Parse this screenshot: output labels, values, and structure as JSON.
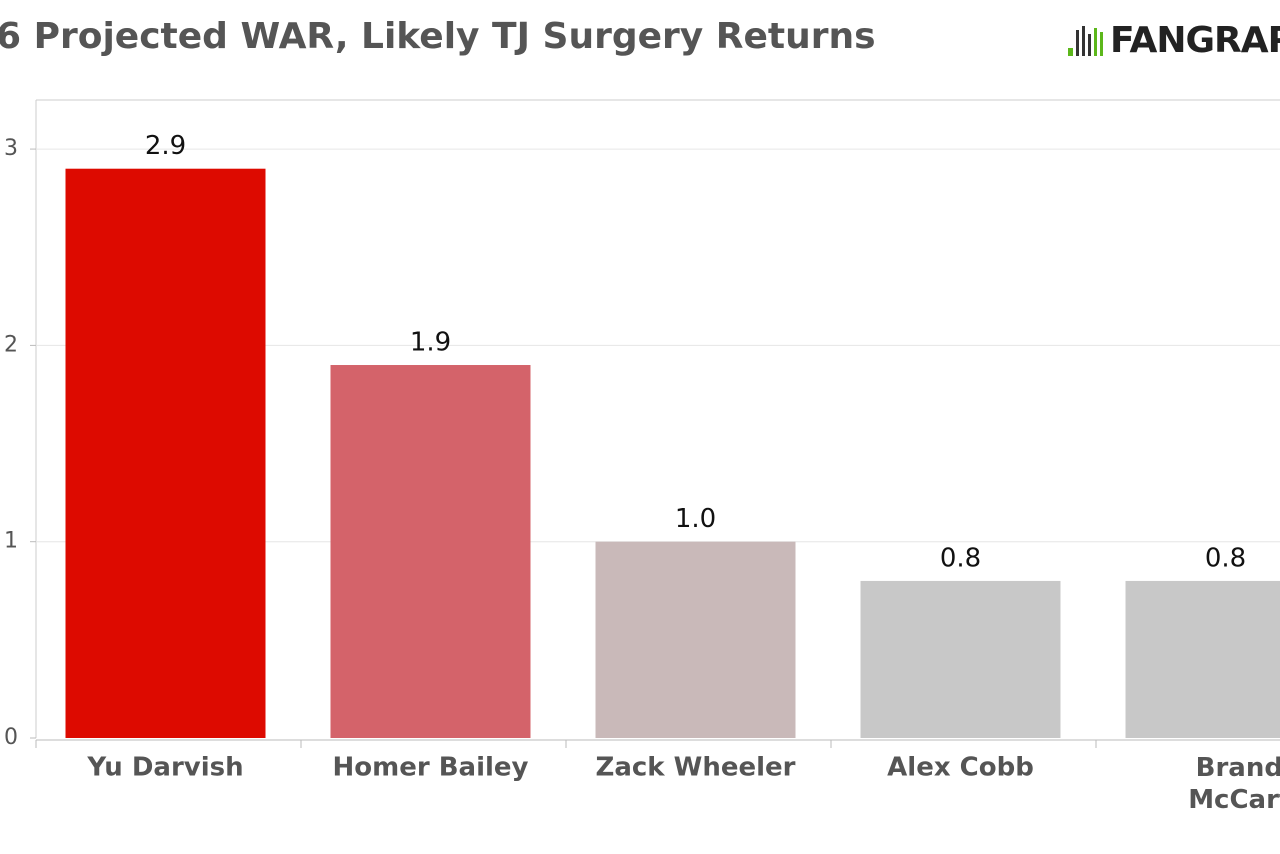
{
  "chart_data": {
    "type": "bar",
    "title": "6 Projected WAR, Likely TJ Surgery Returns",
    "logo": "FANGRAPHS",
    "categories": [
      "Yu Darvish",
      "Homer Bailey",
      "Zack Wheeler",
      "Alex Cobb",
      "Brandon McCarthy"
    ],
    "values": [
      2.9,
      1.9,
      1.0,
      0.8,
      0.8
    ],
    "value_labels": [
      "2.9",
      "1.9",
      "1.0",
      "0.8",
      "0.8"
    ],
    "colors": [
      "#dd0a00",
      "#d4636a",
      "#c9b9b9",
      "#c8c8c8",
      "#c8c8c8"
    ],
    "ylim": [
      0,
      3.25
    ],
    "yticks": [
      0,
      1,
      2,
      3
    ],
    "grid": true
  }
}
